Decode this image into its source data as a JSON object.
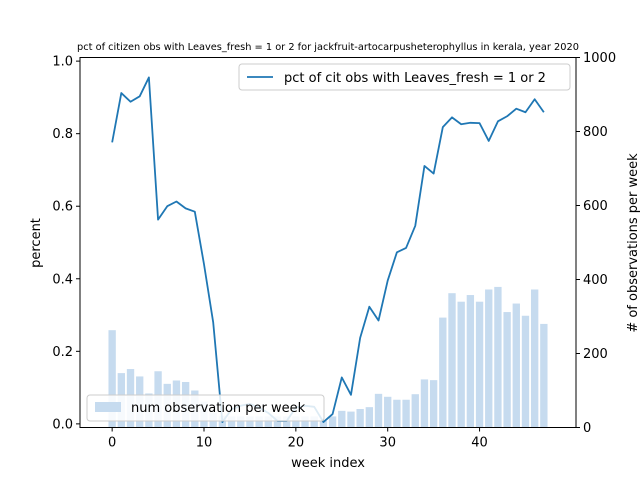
{
  "chart_data": {
    "type": "bar+line",
    "title": "pct of citizen obs with Leaves_fresh = 1 or 2 for jackfruit-artocarpusheterophyllus in kerala, year 2020",
    "xlabel": "week index",
    "ylabel_left": "percent",
    "ylabel_right": "# of observations per week",
    "xlim": [
      -3.5,
      50.5
    ],
    "ylim_left": [
      -0.01,
      1.01
    ],
    "ylim_right": [
      0,
      1000
    ],
    "xticks": [
      0,
      10,
      20,
      30,
      40
    ],
    "yticks_left": [
      0.0,
      0.2,
      0.4,
      0.6,
      0.8,
      1.0
    ],
    "yticks_right": [
      0,
      200,
      400,
      600,
      800,
      1000
    ],
    "colors": {
      "line": "#1f77b4",
      "bar": "#c6dbef"
    },
    "line_series": {
      "name": "pct of cit obs with Leaves_fresh = 1 or 2",
      "x": [
        0,
        1,
        2,
        3,
        4,
        5,
        6,
        7,
        8,
        9,
        10,
        11,
        12,
        13,
        14,
        15,
        16,
        17,
        18,
        19,
        20,
        21,
        22,
        23,
        24,
        25,
        26,
        27,
        28,
        29,
        30,
        31,
        32,
        33,
        34,
        35,
        36,
        37,
        38,
        39,
        40,
        41,
        42,
        43,
        44,
        45,
        46,
        47
      ],
      "values": [
        0.776,
        0.912,
        0.888,
        0.903,
        0.955,
        0.563,
        0.6,
        0.613,
        0.594,
        0.585,
        0.44,
        0.28,
        0.005,
        0.04,
        0.05,
        0.055,
        0.045,
        0.03,
        0.008,
        0.008,
        0.045,
        0.05,
        0.047,
        0.005,
        0.027,
        0.128,
        0.08,
        0.237,
        0.323,
        0.285,
        0.395,
        0.473,
        0.485,
        0.546,
        0.711,
        0.69,
        0.818,
        0.845,
        0.826,
        0.83,
        0.829,
        0.78,
        0.834,
        0.848,
        0.869,
        0.859,
        0.895,
        0.859
      ]
    },
    "bar_series": {
      "name": "num observation per week",
      "x": [
        0,
        1,
        2,
        3,
        4,
        5,
        6,
        7,
        8,
        9,
        10,
        11,
        12,
        13,
        14,
        15,
        16,
        17,
        18,
        19,
        20,
        21,
        22,
        23,
        24,
        25,
        26,
        27,
        28,
        29,
        30,
        31,
        32,
        33,
        34,
        35,
        36,
        37,
        38,
        39,
        40,
        41,
        42,
        43,
        44,
        45,
        46,
        47
      ],
      "values": [
        263,
        147,
        158,
        138,
        92,
        152,
        118,
        127,
        123,
        100,
        70,
        40,
        32,
        30,
        30,
        30,
        30,
        30,
        30,
        30,
        30,
        30,
        30,
        18,
        30,
        45,
        43,
        50,
        55,
        91,
        83,
        75,
        75,
        90,
        130,
        128,
        297,
        363,
        340,
        358,
        340,
        373,
        380,
        312,
        335,
        302,
        373,
        280
      ]
    },
    "legend_line_position": "top-right",
    "legend_bar_position": "bottom-left",
    "grid": false
  }
}
